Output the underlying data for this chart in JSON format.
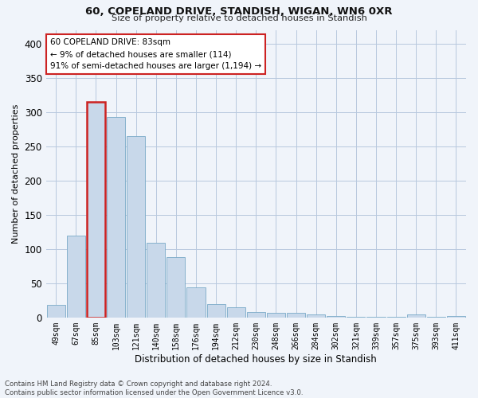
{
  "title1": "60, COPELAND DRIVE, STANDISH, WIGAN, WN6 0XR",
  "title2": "Size of property relative to detached houses in Standish",
  "xlabel": "Distribution of detached houses by size in Standish",
  "ylabel": "Number of detached properties",
  "footer": "Contains HM Land Registry data © Crown copyright and database right 2024.\nContains public sector information licensed under the Open Government Licence v3.0.",
  "annotation_title": "60 COPELAND DRIVE: 83sqm",
  "annotation_line2": "← 9% of detached houses are smaller (114)",
  "annotation_line3": "91% of semi-detached houses are larger (1,194) →",
  "highlight_bar_index": 2,
  "bar_color": "#c8d8ea",
  "highlight_color": "#cc2222",
  "bar_edge_color": "#7aaac8",
  "categories": [
    "49sqm",
    "67sqm",
    "85sqm",
    "103sqm",
    "121sqm",
    "140sqm",
    "158sqm",
    "176sqm",
    "194sqm",
    "212sqm",
    "230sqm",
    "248sqm",
    "266sqm",
    "284sqm",
    "302sqm",
    "321sqm",
    "339sqm",
    "357sqm",
    "375sqm",
    "393sqm",
    "411sqm"
  ],
  "values": [
    18,
    119,
    315,
    293,
    265,
    109,
    88,
    44,
    20,
    15,
    8,
    7,
    7,
    5,
    2,
    1,
    1,
    1,
    4,
    1,
    2
  ],
  "ylim": [
    0,
    420
  ],
  "yticks": [
    0,
    50,
    100,
    150,
    200,
    250,
    300,
    350,
    400
  ],
  "background_color": "#f0f4fa",
  "grid_color": "#b8c8de"
}
